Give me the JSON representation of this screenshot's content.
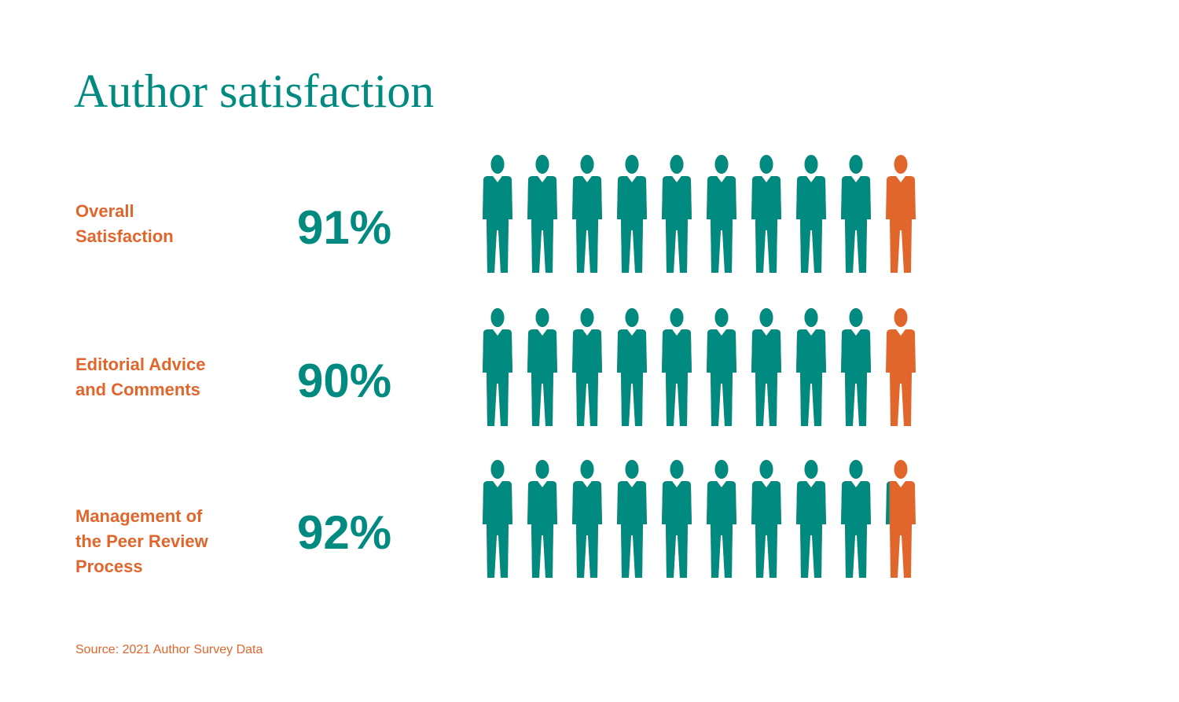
{
  "chart_data": {
    "type": "pictogram",
    "title": "Author satisfaction",
    "categories": [
      "Overall Satisfaction",
      "Editorial Advice and Comments",
      "Management of the Peer Review Process"
    ],
    "values": [
      91,
      90,
      92
    ],
    "value_labels": [
      "91%",
      "90%",
      "92%"
    ],
    "ylim": [
      0,
      100
    ],
    "color": "#008a80",
    "rest_color": "#e0662b",
    "label_color": "#e0662b",
    "source": "Source: 2021 Author Survey Data"
  }
}
